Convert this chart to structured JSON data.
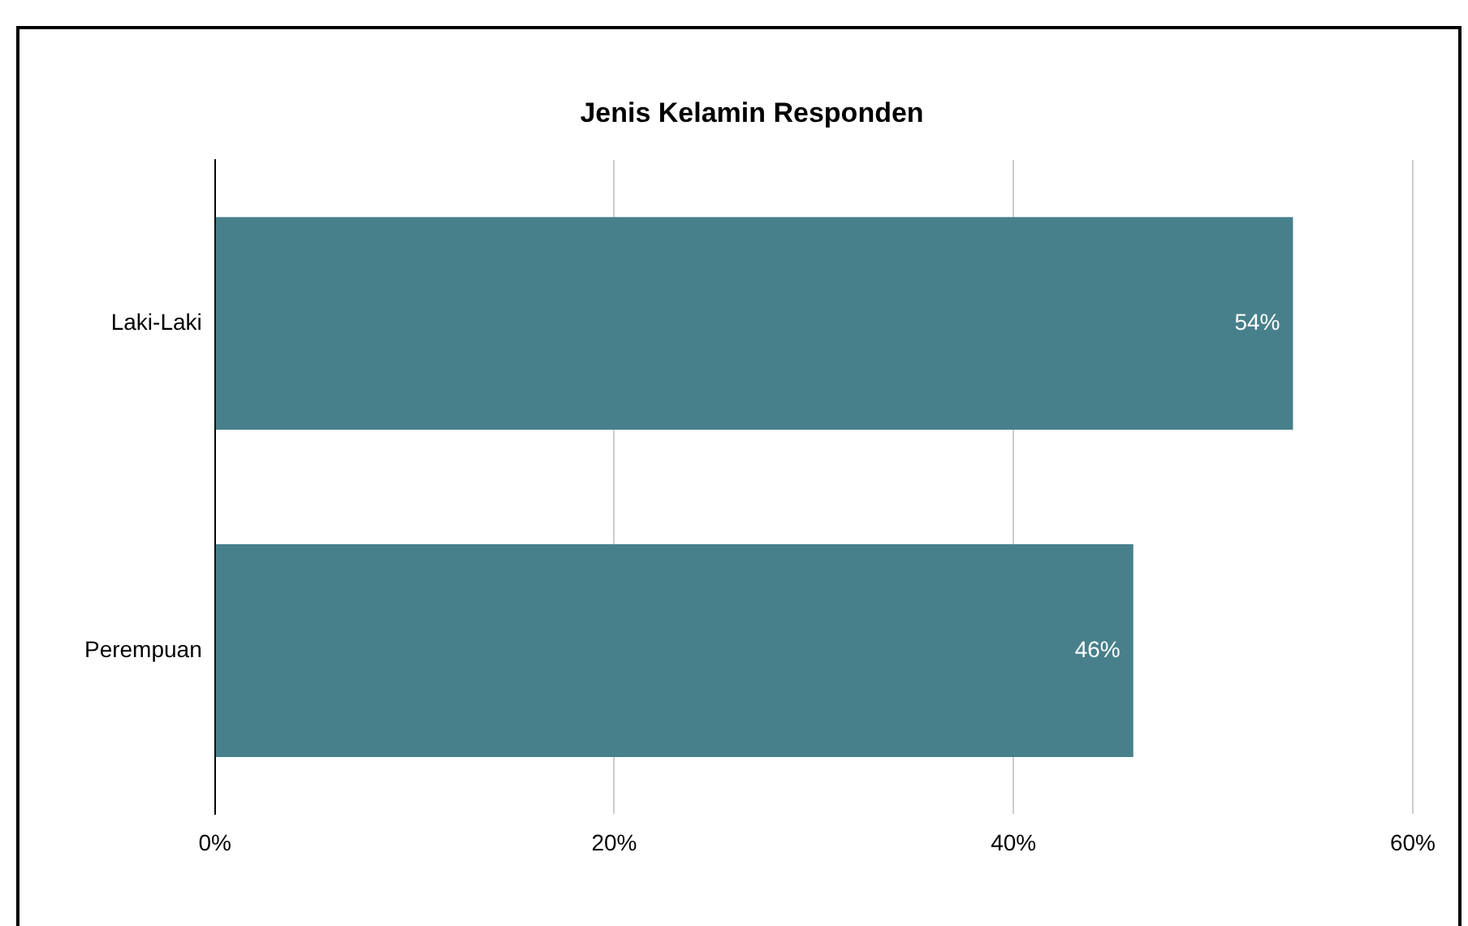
{
  "chart_data": {
    "type": "bar",
    "orientation": "horizontal",
    "title": "Jenis Kelamin Responden",
    "categories": [
      "Laki-Laki",
      "Perempuan"
    ],
    "values": [
      54,
      46
    ],
    "color": "#47808b",
    "value_labels": [
      "54%",
      "46%"
    ],
    "xlim": [
      0,
      60
    ],
    "xticks": [
      {
        "value": 0,
        "label": "0%"
      },
      {
        "value": 20,
        "label": "20%"
      },
      {
        "value": 40,
        "label": "40%"
      },
      {
        "value": 60,
        "label": "60%"
      }
    ],
    "grid": "x",
    "legend": false
  }
}
